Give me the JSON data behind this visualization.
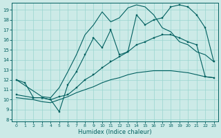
{
  "xlabel": "Humidex (Indice chaleur)",
  "bg_color": "#cceae7",
  "grid_color": "#99d5d0",
  "line_color": "#005f5f",
  "xlim": [
    -0.5,
    23.5
  ],
  "ylim": [
    7.8,
    19.7
  ],
  "xticks": [
    0,
    1,
    2,
    3,
    4,
    5,
    6,
    7,
    8,
    9,
    10,
    11,
    12,
    13,
    14,
    15,
    16,
    17,
    18,
    19,
    20,
    21,
    22,
    23
  ],
  "yticks": [
    8,
    9,
    10,
    11,
    12,
    13,
    14,
    15,
    16,
    17,
    18,
    19
  ],
  "curve1_x": [
    0,
    1,
    2,
    3,
    4,
    5,
    6,
    7,
    8,
    9,
    10,
    11,
    12,
    13,
    14,
    15,
    16,
    17,
    18,
    19,
    20,
    21,
    22,
    23
  ],
  "curve1_y": [
    12.0,
    11.7,
    10.2,
    10.2,
    10.0,
    8.8,
    11.5,
    12.8,
    14.5,
    16.2,
    15.2,
    17.0,
    14.5,
    14.8,
    18.5,
    17.5,
    18.0,
    18.2,
    19.3,
    19.5,
    19.3,
    18.5,
    17.2,
    13.8
  ],
  "curve2_x": [
    0,
    3,
    4,
    5,
    6,
    7,
    8,
    9,
    10,
    11,
    12,
    13,
    14,
    15,
    16,
    17,
    18,
    19,
    20,
    21,
    22,
    23
  ],
  "curve2_y": [
    12.0,
    10.3,
    10.2,
    11.2,
    12.8,
    14.5,
    16.5,
    17.5,
    18.8,
    17.8,
    18.2,
    19.2,
    19.5,
    19.3,
    18.5,
    17.2,
    16.8,
    15.8,
    15.5,
    14.8,
    14.5,
    13.8
  ],
  "curve3_x": [
    0,
    2,
    3,
    4,
    5,
    6,
    7,
    8,
    9,
    10,
    11,
    12,
    13,
    14,
    15,
    16,
    17,
    18,
    19,
    20,
    21,
    22,
    23
  ],
  "curve3_y": [
    10.5,
    10.2,
    10.2,
    10.0,
    10.3,
    10.5,
    11.2,
    12.0,
    12.5,
    13.2,
    13.8,
    14.3,
    14.8,
    15.5,
    15.8,
    16.2,
    16.5,
    16.5,
    16.2,
    15.8,
    15.5,
    12.3,
    12.2
  ],
  "curve4_x": [
    0,
    2,
    3,
    4,
    5,
    6,
    7,
    8,
    9,
    10,
    11,
    12,
    13,
    14,
    15,
    16,
    17,
    18,
    19,
    20,
    21,
    22,
    23
  ],
  "curve4_y": [
    10.2,
    10.0,
    9.8,
    9.7,
    10.0,
    10.3,
    10.7,
    11.0,
    11.3,
    11.7,
    12.0,
    12.2,
    12.5,
    12.7,
    12.8,
    12.9,
    12.9,
    12.9,
    12.8,
    12.7,
    12.5,
    12.3,
    12.2
  ]
}
